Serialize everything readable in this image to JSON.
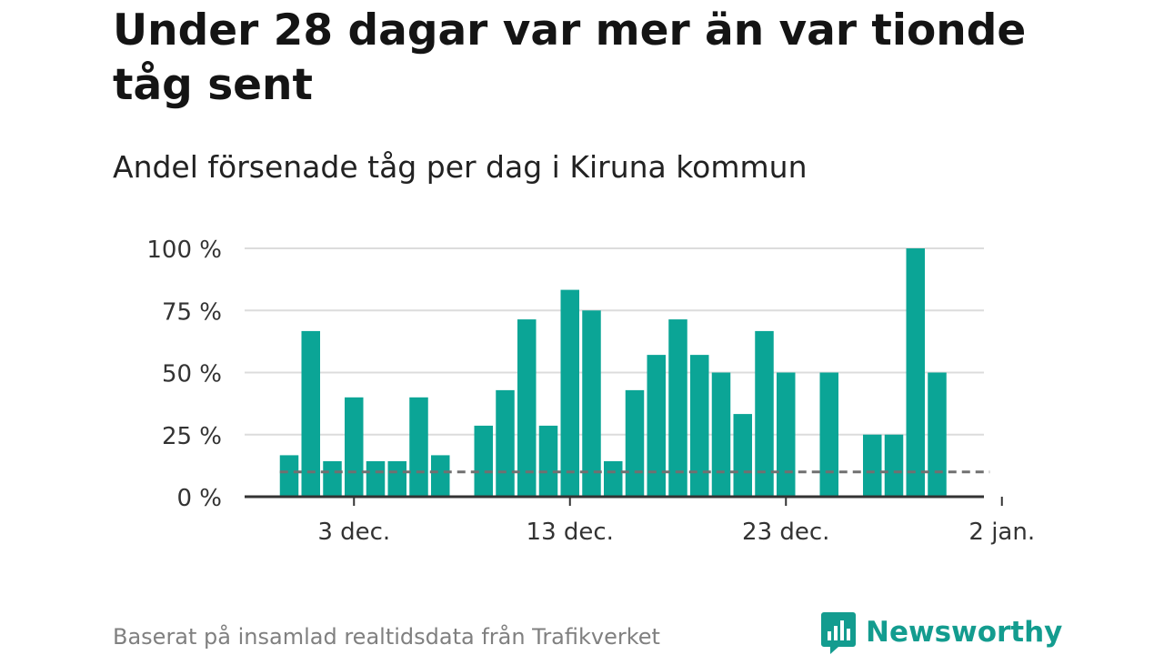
{
  "chart_data": {
    "type": "bar",
    "title": "Under 28 dagar var mer än var tionde tåg sent",
    "subtitle": "Andel försenade tåg per dag i Kiruna kommun",
    "x": [
      "2023-11-30",
      "2023-12-01",
      "2023-12-02",
      "2023-12-03",
      "2023-12-04",
      "2023-12-05",
      "2023-12-06",
      "2023-12-07",
      "2023-12-08",
      "2023-12-09",
      "2023-12-10",
      "2023-12-11",
      "2023-12-12",
      "2023-12-13",
      "2023-12-14",
      "2023-12-15",
      "2023-12-16",
      "2023-12-17",
      "2023-12-18",
      "2023-12-19",
      "2023-12-20",
      "2023-12-21",
      "2023-12-22",
      "2023-12-23",
      "2023-12-24",
      "2023-12-25",
      "2023-12-26",
      "2023-12-27",
      "2023-12-28",
      "2023-12-29",
      "2023-12-30",
      "2023-12-31",
      "2024-01-01"
    ],
    "values": [
      16.7,
      66.7,
      14.3,
      40,
      14.3,
      14.3,
      40,
      16.7,
      null,
      28.6,
      42.9,
      71.4,
      28.6,
      83.3,
      75,
      14.3,
      42.9,
      57.1,
      71.4,
      57.1,
      50,
      33.3,
      66.7,
      50,
      null,
      50,
      null,
      25,
      25,
      100,
      50,
      null,
      null
    ],
    "reference_line": 10,
    "x_ticks": [
      {
        "x": "2023-12-03",
        "label": "3 dec."
      },
      {
        "x": "2023-12-13",
        "label": "13 dec."
      },
      {
        "x": "2023-12-23",
        "label": "23 dec."
      },
      {
        "x": "2024-01-02",
        "label": "2 jan."
      }
    ],
    "y_ticks": [
      {
        "value": 0,
        "label": "0 %"
      },
      {
        "value": 25,
        "label": "25 %"
      },
      {
        "value": 50,
        "label": "50 %"
      },
      {
        "value": 75,
        "label": "75 %"
      },
      {
        "value": 100,
        "label": "100 %"
      }
    ],
    "ylim": [
      0,
      100
    ],
    "grid": true,
    "bar_color": "#0ba596",
    "reference_color": "#707070"
  },
  "footer": {
    "source": "Baserat på insamlad realtidsdata från Trafikverket",
    "brand": "Newsworthy",
    "brand_icon": "newsworthy-logo-icon",
    "brand_color": "#139c8f"
  }
}
